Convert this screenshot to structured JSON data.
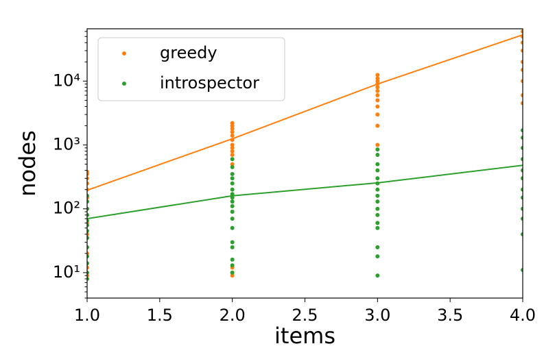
{
  "chart_data": {
    "type": "scatter",
    "x_label": "items",
    "y_label": "nodes",
    "log_y": true,
    "legend": "upper left",
    "xlim": [
      1,
      4
    ],
    "ylim": [
      4,
      66000
    ],
    "xticks": [
      {
        "value": 1,
        "label": "1.0"
      },
      1.5,
      {
        "value": 2,
        "label": "2.0"
      },
      2.5,
      {
        "value": 3,
        "label": "3.0"
      },
      3.5,
      {
        "value": 4,
        "label": "4.0"
      }
    ],
    "yticks": [
      {
        "value": 10,
        "label": "10¹"
      },
      {
        "value": 100,
        "label": "10²"
      },
      {
        "value": 1000,
        "label": "10³"
      },
      {
        "value": 10000,
        "label": "10⁴"
      }
    ],
    "series": [
      {
        "name": "greedy",
        "color": "#ff7f0e",
        "x": [
          1,
          1,
          1,
          1,
          1,
          1,
          1,
          1,
          1,
          1,
          1,
          1,
          2,
          2,
          2,
          2,
          2,
          2,
          2,
          2,
          2,
          2,
          2,
          2,
          2,
          2,
          3,
          3,
          3,
          3,
          3,
          3,
          3,
          3,
          3,
          3,
          3,
          3,
          4,
          4,
          4,
          4,
          4,
          4,
          4,
          4,
          4,
          4
        ],
        "values": [
          9,
          12,
          20,
          40,
          60,
          100,
          150,
          200,
          250,
          300,
          350,
          380,
          9,
          10,
          12,
          500,
          700,
          800,
          900,
          1000,
          1200,
          1400,
          1600,
          1800,
          2000,
          2200,
          1000,
          2000,
          3000,
          4000,
          5000,
          6000,
          7000,
          8000,
          9000,
          10000,
          11000,
          12500,
          4500,
          6000,
          10000,
          15000,
          20000,
          30000,
          40000,
          50000,
          60000,
          70000
        ]
      },
      {
        "name": "introspector",
        "color": "#2ca02c",
        "x": [
          1,
          1,
          1,
          1,
          1,
          1,
          1,
          1,
          1,
          1,
          1,
          1,
          1,
          2,
          2,
          2,
          2,
          2,
          2,
          2,
          2,
          2,
          2,
          2,
          2,
          2,
          2,
          2,
          2,
          2,
          2,
          3,
          3,
          3,
          3,
          3,
          3,
          3,
          3,
          3,
          3,
          3,
          3,
          3,
          3,
          3,
          3,
          4,
          4,
          4,
          4,
          4,
          4,
          4,
          4,
          4,
          4,
          4,
          4
        ],
        "values": [
          8,
          10,
          14,
          18,
          25,
          35,
          45,
          55,
          65,
          80,
          100,
          130,
          160,
          10,
          13,
          16,
          25,
          30,
          50,
          70,
          90,
          110,
          130,
          150,
          170,
          200,
          250,
          300,
          350,
          450,
          600,
          9,
          18,
          25,
          50,
          60,
          80,
          100,
          130,
          160,
          200,
          250,
          300,
          400,
          500,
          700,
          850,
          11,
          40,
          70,
          100,
          150,
          200,
          300,
          400,
          600,
          900,
          1300,
          1700
        ]
      }
    ],
    "fits": [
      {
        "color": "#ff7f0e",
        "x": [
          1,
          2,
          3,
          4
        ],
        "values": [
          195,
          1250,
          9000,
          53000
        ]
      },
      {
        "color": "#2ca02c",
        "x": [
          1,
          2,
          3,
          4
        ],
        "values": [
          70,
          160,
          255,
          480
        ]
      }
    ]
  }
}
